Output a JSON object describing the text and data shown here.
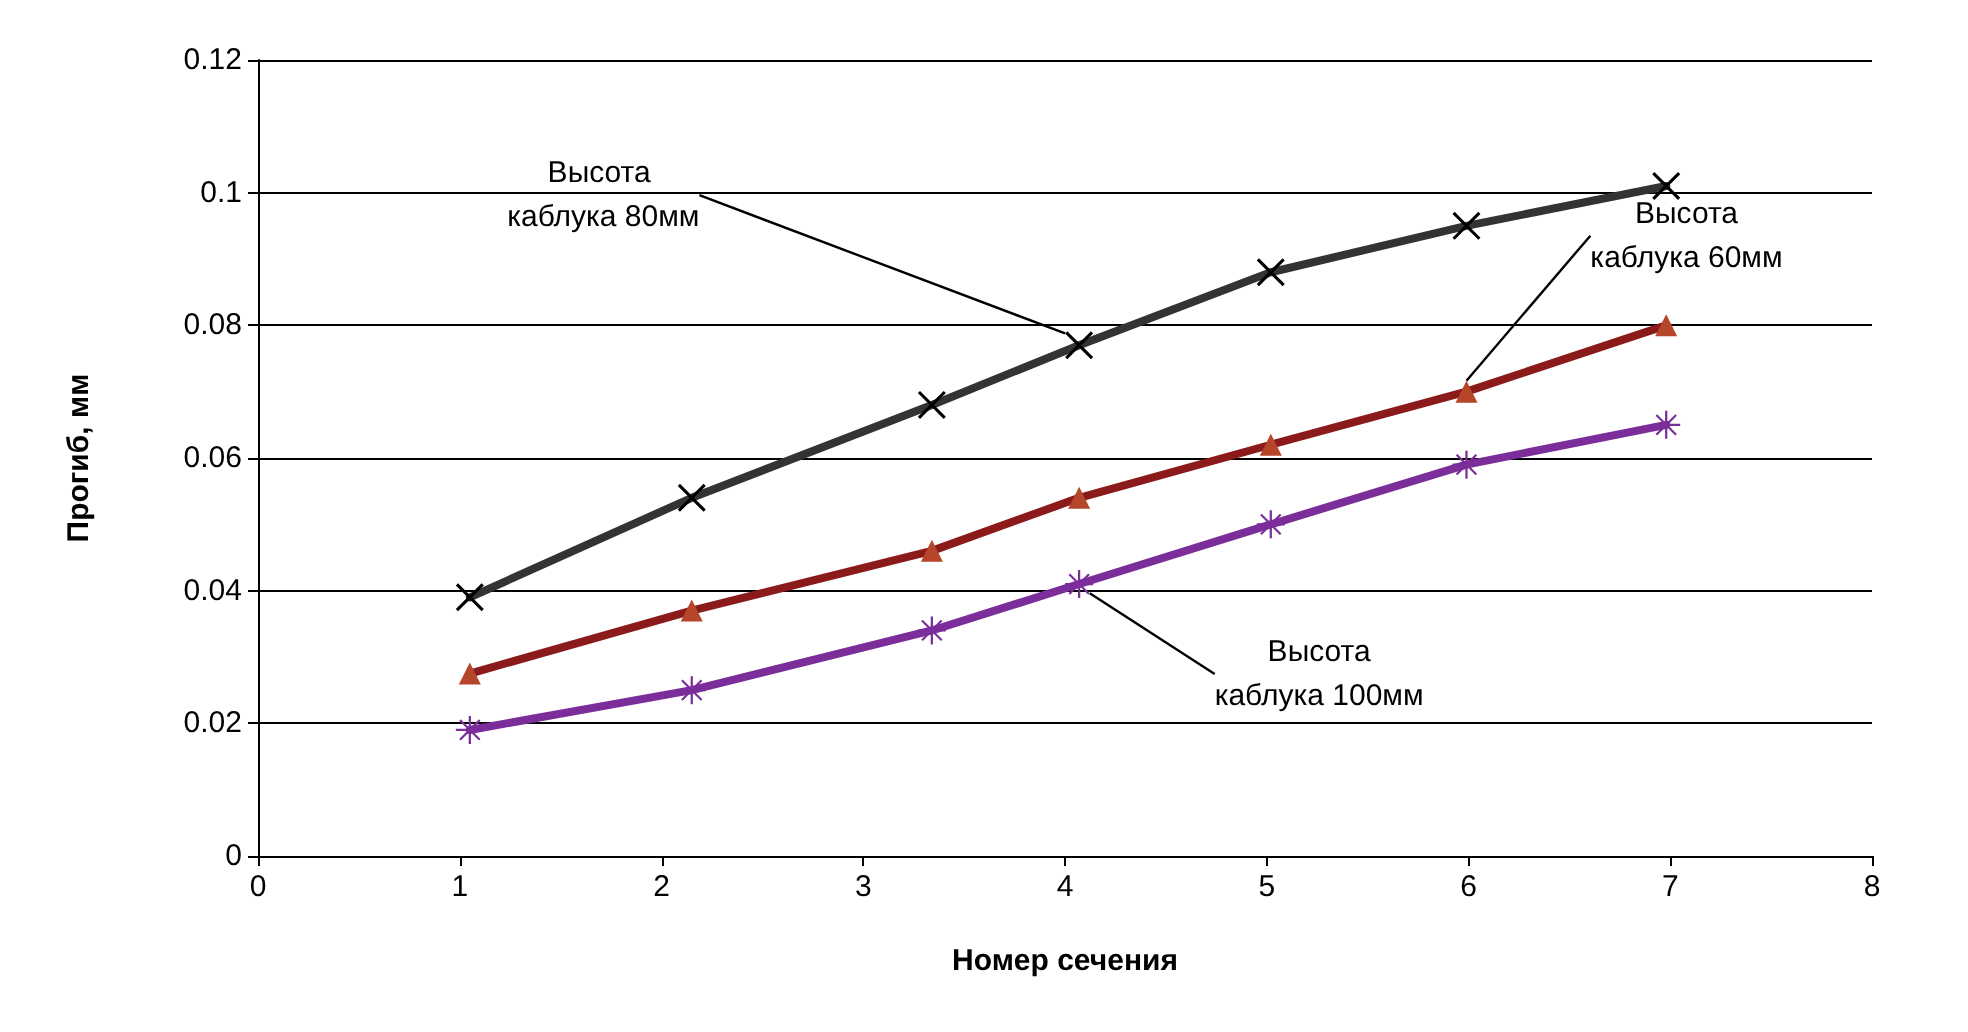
{
  "chart_data": {
    "type": "line",
    "xlabel": "Номер сечения",
    "ylabel": "Прогиб, мм",
    "xlim": [
      0,
      8
    ],
    "xticks": [
      0,
      1,
      2,
      3,
      4,
      5,
      6,
      7,
      8
    ],
    "ylim": [
      0,
      0.12
    ],
    "yticks": [
      0,
      0.02,
      0.04,
      0.06,
      0.08,
      0.1,
      0.12
    ],
    "grid": "y",
    "series": [
      {
        "name": "Высота\n каблука 80мм",
        "color": "#333333",
        "marker": "cross",
        "x": [
          1.05,
          2.15,
          3.34,
          4.07,
          5.02,
          5.99,
          6.98
        ],
        "values": [
          0.039,
          0.054,
          0.068,
          0.077,
          0.088,
          0.095,
          0.101
        ]
      },
      {
        "name": "Высота\nкаблука 60мм",
        "color": "#8b1a1a",
        "marker": "triangle",
        "x": [
          1.05,
          2.15,
          3.34,
          4.07,
          5.02,
          5.99,
          6.98
        ],
        "values": [
          0.0275,
          0.037,
          0.046,
          0.054,
          0.062,
          0.07,
          0.08
        ]
      },
      {
        "name": "Высота\nкаблука 100мм",
        "color": "#7b2d9a",
        "marker": "star",
        "x": [
          1.05,
          2.15,
          3.34,
          4.07,
          5.02,
          5.99,
          6.98
        ],
        "values": [
          0.019,
          0.025,
          0.034,
          0.041,
          0.05,
          0.059,
          0.065
        ]
      }
    ]
  }
}
